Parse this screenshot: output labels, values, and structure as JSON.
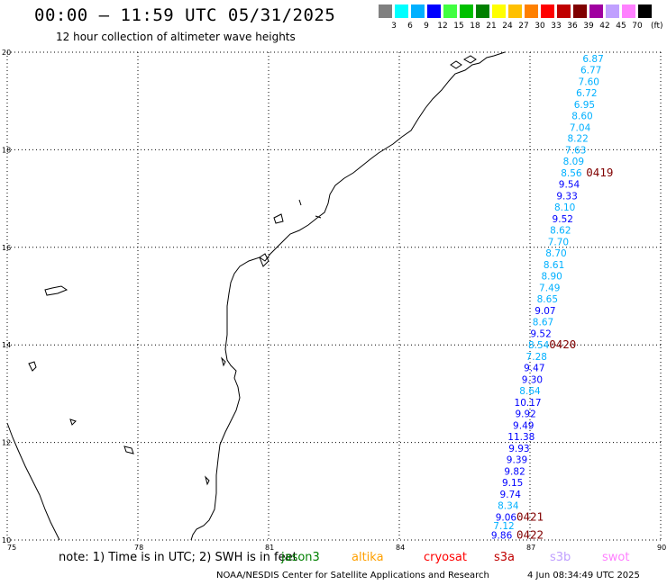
{
  "header": {
    "title": "00:00 – 11:59 UTC 05/31/2025",
    "subtitle": "12 hour collection of altimeter wave heights"
  },
  "colorbar": {
    "unit": "(ft)",
    "bins": [
      {
        "label": "3",
        "color": "#808080"
      },
      {
        "label": "6",
        "color": "#00ffff"
      },
      {
        "label": "9",
        "color": "#00b0ff"
      },
      {
        "label": "12",
        "color": "#0000ff"
      },
      {
        "label": "15",
        "color": "#40ff40"
      },
      {
        "label": "18",
        "color": "#00c000"
      },
      {
        "label": "21",
        "color": "#008000"
      },
      {
        "label": "24",
        "color": "#ffff00"
      },
      {
        "label": "27",
        "color": "#ffc000"
      },
      {
        "label": "30",
        "color": "#ff8000"
      },
      {
        "label": "33",
        "color": "#ff0000"
      },
      {
        "label": "36",
        "color": "#c00000"
      },
      {
        "label": "39",
        "color": "#800000"
      },
      {
        "label": "42",
        "color": "#a000a0"
      },
      {
        "label": "45",
        "color": "#c0a0ff"
      },
      {
        "label": "70",
        "color": "#ff80ff"
      },
      {
        "label": "",
        "color": "#000000"
      }
    ]
  },
  "axes": {
    "lon_labels": [
      "75",
      "78",
      "81",
      "84",
      "87",
      "90"
    ],
    "lat_labels": [
      "10",
      "12",
      "14",
      "16",
      "18",
      "20"
    ],
    "lon_range": [
      75,
      90
    ],
    "lat_range": [
      10,
      20
    ]
  },
  "track": {
    "readings": [
      {
        "lat": 19.8,
        "lon": 88.45,
        "value": "6.87",
        "color": "#00b0ff"
      },
      {
        "lat": 19.57,
        "lon": 88.4,
        "value": "6.77",
        "color": "#00b0ff"
      },
      {
        "lat": 19.33,
        "lon": 88.35,
        "value": "7.60",
        "color": "#00b0ff"
      },
      {
        "lat": 19.1,
        "lon": 88.3,
        "value": "6.72",
        "color": "#00b0ff"
      },
      {
        "lat": 18.86,
        "lon": 88.25,
        "value": "6.95",
        "color": "#00b0ff"
      },
      {
        "lat": 18.63,
        "lon": 88.2,
        "value": "8.60",
        "color": "#00b0ff"
      },
      {
        "lat": 18.39,
        "lon": 88.15,
        "value": "7.04",
        "color": "#00b0ff"
      },
      {
        "lat": 18.16,
        "lon": 88.1,
        "value": "8.22",
        "color": "#00b0ff"
      },
      {
        "lat": 17.92,
        "lon": 88.05,
        "value": "7.63",
        "color": "#00b0ff"
      },
      {
        "lat": 17.69,
        "lon": 88.0,
        "value": "8.09",
        "color": "#00b0ff"
      },
      {
        "lat": 17.45,
        "lon": 87.95,
        "value": "8.56",
        "color": "#00b0ff"
      },
      {
        "lat": 17.22,
        "lon": 87.9,
        "value": "9.54",
        "color": "#0000ff"
      },
      {
        "lat": 16.98,
        "lon": 87.85,
        "value": "9.33",
        "color": "#0000ff"
      },
      {
        "lat": 16.75,
        "lon": 87.8,
        "value": "8.10",
        "color": "#00b0ff"
      },
      {
        "lat": 16.51,
        "lon": 87.75,
        "value": "9.52",
        "color": "#0000ff"
      },
      {
        "lat": 16.28,
        "lon": 87.7,
        "value": "8.62",
        "color": "#00b0ff"
      },
      {
        "lat": 16.04,
        "lon": 87.65,
        "value": "7.70",
        "color": "#00b0ff"
      },
      {
        "lat": 15.81,
        "lon": 87.6,
        "value": "8.70",
        "color": "#00b0ff"
      },
      {
        "lat": 15.57,
        "lon": 87.55,
        "value": "8.61",
        "color": "#00b0ff"
      },
      {
        "lat": 15.34,
        "lon": 87.5,
        "value": "8.90",
        "color": "#00b0ff"
      },
      {
        "lat": 15.1,
        "lon": 87.45,
        "value": "7.49",
        "color": "#00b0ff"
      },
      {
        "lat": 14.87,
        "lon": 87.4,
        "value": "8.65",
        "color": "#00b0ff"
      },
      {
        "lat": 14.63,
        "lon": 87.35,
        "value": "9.07",
        "color": "#0000ff"
      },
      {
        "lat": 14.4,
        "lon": 87.3,
        "value": "8.67",
        "color": "#00b0ff"
      },
      {
        "lat": 14.16,
        "lon": 87.25,
        "value": "9.52",
        "color": "#0000ff"
      },
      {
        "lat": 13.93,
        "lon": 87.2,
        "value": "8.54",
        "color": "#00b0ff"
      },
      {
        "lat": 13.69,
        "lon": 87.15,
        "value": "7.28",
        "color": "#00b0ff"
      },
      {
        "lat": 13.46,
        "lon": 87.1,
        "value": "9.47",
        "color": "#0000ff"
      },
      {
        "lat": 13.22,
        "lon": 87.05,
        "value": "9.30",
        "color": "#0000ff"
      },
      {
        "lat": 12.99,
        "lon": 87.0,
        "value": "8.64",
        "color": "#00b0ff"
      },
      {
        "lat": 12.75,
        "lon": 86.95,
        "value": "10.17",
        "color": "#0000ff"
      },
      {
        "lat": 12.52,
        "lon": 86.9,
        "value": "9.92",
        "color": "#0000ff"
      },
      {
        "lat": 12.28,
        "lon": 86.85,
        "value": "9.49",
        "color": "#0000ff"
      },
      {
        "lat": 12.05,
        "lon": 86.8,
        "value": "11.38",
        "color": "#0000ff"
      },
      {
        "lat": 11.81,
        "lon": 86.75,
        "value": "9.93",
        "color": "#0000ff"
      },
      {
        "lat": 11.58,
        "lon": 86.7,
        "value": "9.39",
        "color": "#0000ff"
      },
      {
        "lat": 11.34,
        "lon": 86.65,
        "value": "9.82",
        "color": "#0000ff"
      },
      {
        "lat": 11.11,
        "lon": 86.6,
        "value": "9.15",
        "color": "#0000ff"
      },
      {
        "lat": 10.87,
        "lon": 86.55,
        "value": "9.74",
        "color": "#0000ff"
      },
      {
        "lat": 10.64,
        "lon": 86.5,
        "value": "8.34",
        "color": "#00b0ff"
      },
      {
        "lat": 10.4,
        "lon": 86.45,
        "value": "9.06",
        "color": "#0000ff"
      },
      {
        "lat": 10.22,
        "lon": 86.4,
        "value": "7.12",
        "color": "#00b0ff"
      },
      {
        "lat": 10.03,
        "lon": 86.35,
        "value": "9.86",
        "color": "#0000ff"
      }
    ],
    "time_marks": [
      {
        "lat": 17.45,
        "lon": 88.6,
        "text": "0419"
      },
      {
        "lat": 13.93,
        "lon": 87.75,
        "text": "0420"
      },
      {
        "lat": 10.4,
        "lon": 87.0,
        "text": "0421"
      },
      {
        "lat": 10.03,
        "lon": 87.0,
        "text": "0422"
      }
    ],
    "time_mark_color": "#800000"
  },
  "footer": {
    "note": "note: 1) Time is in UTC; 2) SWH is in feet",
    "satellites": [
      {
        "name": "jason3",
        "color": "#008000"
      },
      {
        "name": "altika",
        "color": "#ffa000"
      },
      {
        "name": "cryosat",
        "color": "#ff0000"
      },
      {
        "name": "s3a",
        "color": "#c00000"
      },
      {
        "name": "s3b",
        "color": "#c0a0ff"
      },
      {
        "name": "swot",
        "color": "#ff80ff"
      }
    ],
    "credit": "NOAA/NESDIS Center for Satellite Applications and Research",
    "timestamp": "4 Jun 08:34:49 UTC 2025"
  }
}
